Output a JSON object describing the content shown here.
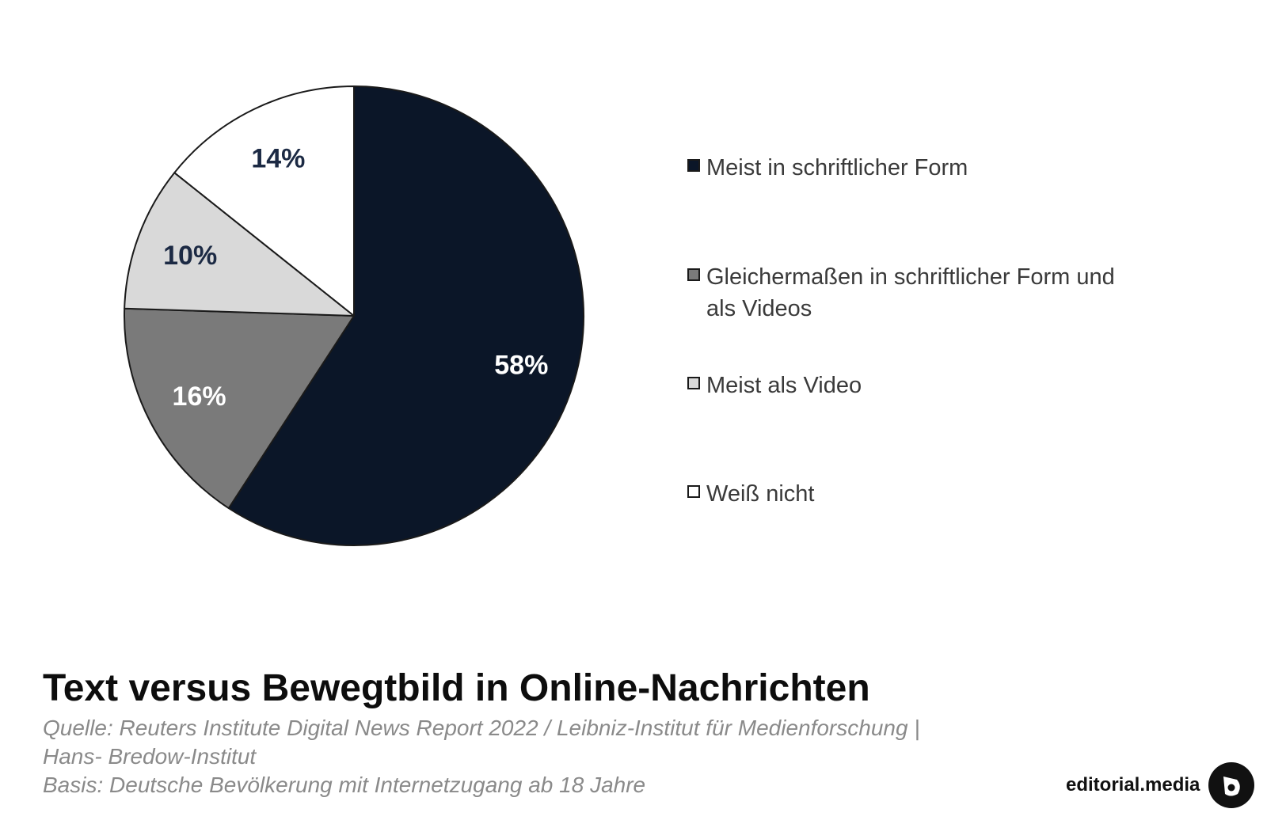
{
  "chart_data": {
    "type": "pie",
    "title": "Text versus Bewegtbild in Online-Nachrichten",
    "categories": [
      "Meist in schriftlicher Form",
      "Gleichermaßen in schriftlicher Form und als Videos",
      "Meist als Video",
      "Weiß nicht"
    ],
    "values": [
      58,
      16,
      10,
      14
    ],
    "value_labels": [
      "58%",
      "16%",
      "10%",
      "14%"
    ],
    "colors": [
      "#0b1628",
      "#7a7a7a",
      "#d9d9d9",
      "#ffffff"
    ],
    "label_colors": [
      "#ffffff",
      "#ffffff",
      "#1c2a44",
      "#1c2a44"
    ],
    "start": "12 o'clock, clockwise",
    "legend_position": "right"
  },
  "notes": {
    "source_line1": "Quelle: Reuters Institute Digital News Report 2022 / Leibniz-Institut für Medienforschung |",
    "source_line2": "Hans- Bredow-Institut",
    "basis": "Basis: Deutsche Bevölkerung mit Internetzugang ab 18 Jahre"
  },
  "brand": {
    "name": "editorial.media",
    "logo_icon": "editorial-media-logo-icon"
  }
}
